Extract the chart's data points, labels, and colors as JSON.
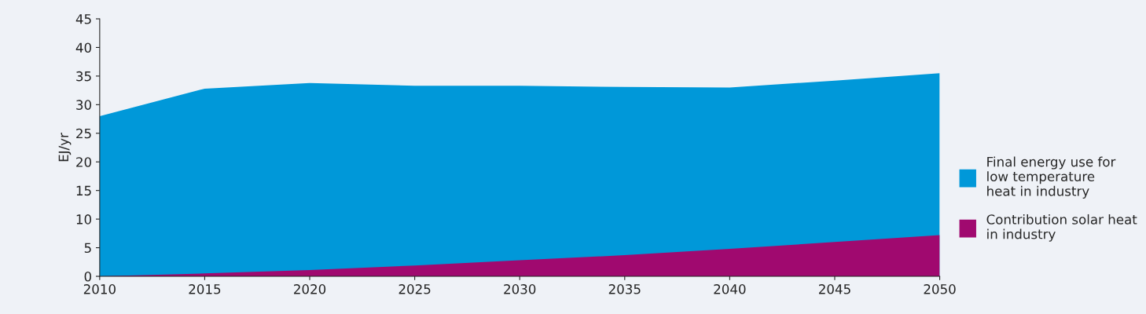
{
  "chart_data": {
    "type": "area",
    "ylabel": "EJ/yr",
    "x": [
      2010,
      2015,
      2020,
      2025,
      2030,
      2035,
      2040,
      2045,
      2050
    ],
    "series": [
      {
        "name": "Final energy use for\nlow temperature\nheat in industry",
        "color": "#0098d9",
        "values": [
          28,
          32.8,
          33.8,
          33.3,
          33.3,
          33.1,
          33,
          34.2,
          35.5
        ]
      },
      {
        "name": "Contribution solar heat\nin industry",
        "color": "#a0096f",
        "values": [
          0,
          0.5,
          1.1,
          1.9,
          2.8,
          3.7,
          4.8,
          6,
          7.2
        ]
      }
    ],
    "xlim": [
      2010,
      2050
    ],
    "xticks": [
      2010,
      2015,
      2020,
      2025,
      2030,
      2035,
      2040,
      2045,
      2050
    ],
    "ylim": [
      0,
      45
    ],
    "yticks": [
      0,
      5,
      10,
      15,
      20,
      25,
      30,
      35,
      40,
      45
    ],
    "grid": false,
    "legend": "right"
  }
}
